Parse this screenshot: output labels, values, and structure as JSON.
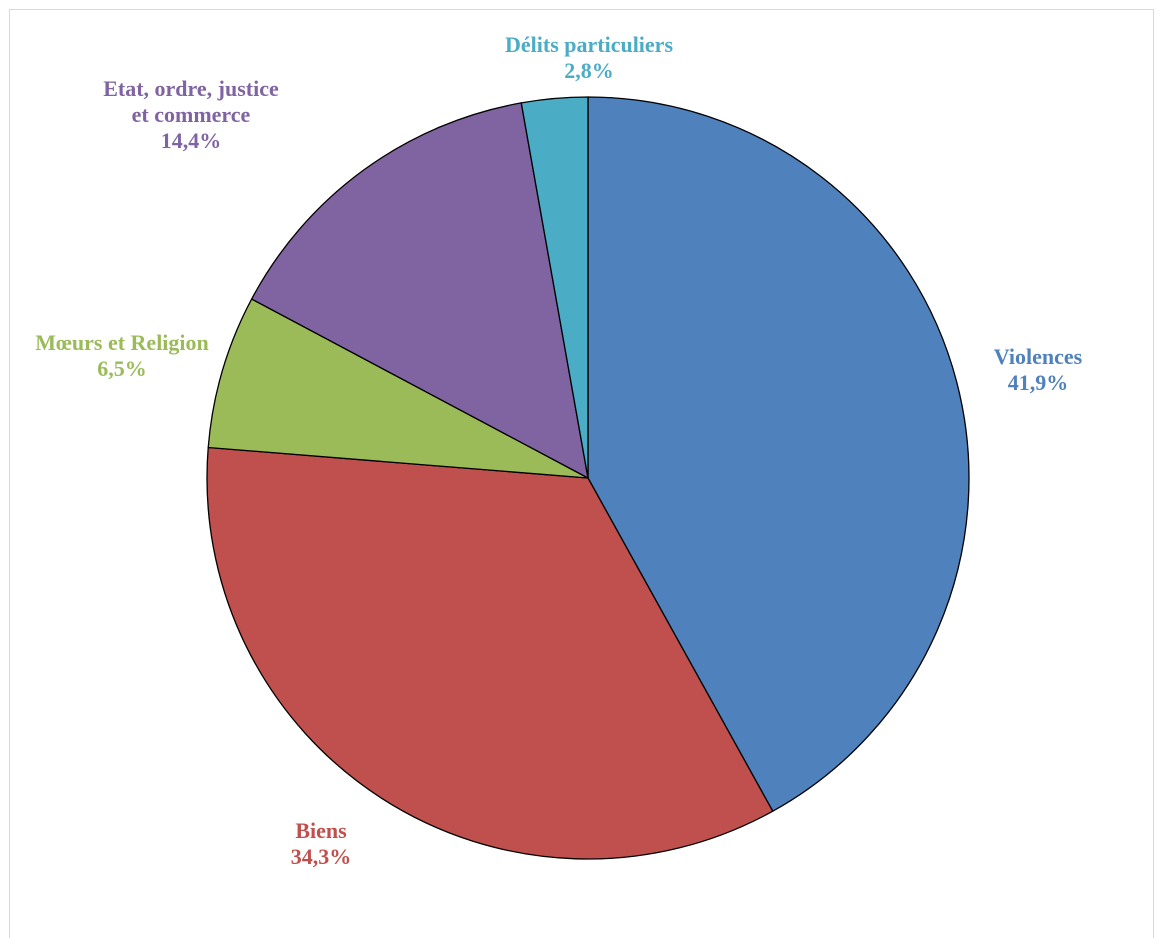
{
  "chart_data": {
    "type": "pie",
    "start_angle_deg": 0,
    "direction": "clockwise",
    "slices": [
      {
        "label_lines": [
          "Violences"
        ],
        "percent_label": "41,9%",
        "value": 41.9,
        "color": "#4F81BD"
      },
      {
        "label_lines": [
          "Biens"
        ],
        "percent_label": "34,3%",
        "value": 34.3,
        "color": "#C0504D"
      },
      {
        "label_lines": [
          "Mœurs et Religion"
        ],
        "percent_label": "6,5%",
        "value": 6.5,
        "color": "#9BBB59"
      },
      {
        "label_lines": [
          "Etat, ordre, justice",
          "et commerce"
        ],
        "percent_label": "14,4%",
        "value": 14.4,
        "color": "#8064A2"
      },
      {
        "label_lines": [
          "Délits particuliers"
        ],
        "percent_label": "2,8%",
        "value": 2.8,
        "color": "#4BACC6"
      }
    ]
  }
}
